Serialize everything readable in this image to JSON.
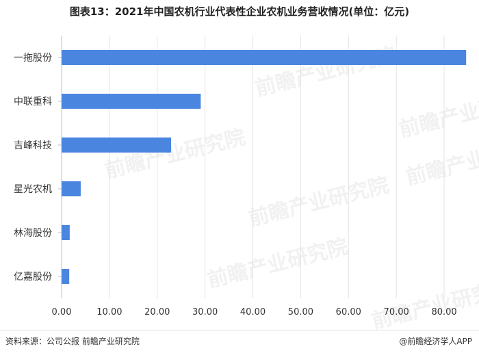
{
  "title": "图表13：2021年中国农机行业代表性企业农机业务营收情况(单位：亿元)",
  "footer": {
    "source": "资料来源：公司公报 前瞻产业研究院",
    "brand": "@前瞻经济学人APP"
  },
  "watermark": "前瞻产业研究院",
  "chart_data": {
    "type": "bar",
    "orientation": "horizontal",
    "title": "图表13：2021年中国农机行业代表性企业农机业务营收情况(单位：亿元)",
    "categories": [
      "一拖股份",
      "中联重科",
      "吉峰科技",
      "星光农机",
      "林海股份",
      "亿嘉股份"
    ],
    "values": [
      84.6,
      29.1,
      22.9,
      4.0,
      1.7,
      1.6
    ],
    "xlim": [
      0,
      85
    ],
    "xticks": [
      0,
      10,
      20,
      30,
      40,
      50,
      60,
      70,
      80
    ],
    "xtick_labels": [
      "0.00",
      "10.00",
      "20.00",
      "30.00",
      "40.00",
      "50.00",
      "60.00",
      "70.00",
      "80.00"
    ],
    "bar_color": "#4a86e0",
    "grid": "vertical",
    "legend": "none"
  }
}
